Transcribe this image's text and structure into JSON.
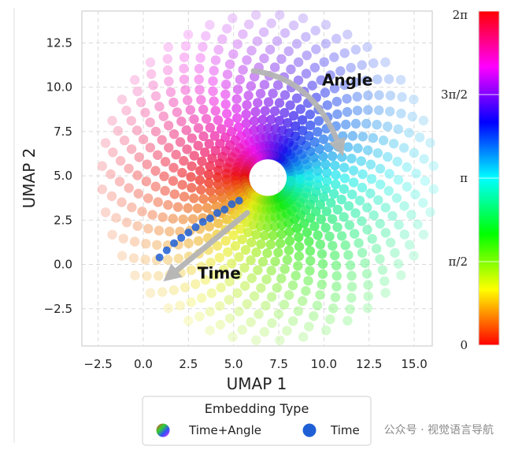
{
  "chart_data": {
    "type": "scatter",
    "xlabel": "UMAP 1",
    "ylabel": "UMAP 2",
    "xlim": [
      -3.4,
      16.0
    ],
    "ylim": [
      -4.6,
      14.3
    ],
    "xticks": [
      "−2.5",
      "0.0",
      "2.5",
      "5.0",
      "7.5",
      "10.0",
      "12.5",
      "15.0"
    ],
    "xtick_values": [
      -2.5,
      0,
      2.5,
      5,
      7.5,
      10,
      12.5,
      15
    ],
    "yticks": [
      "−2.5",
      "0.0",
      "2.5",
      "5.0",
      "7.5",
      "10.0",
      "12.5"
    ],
    "ytick_values": [
      -2.5,
      0,
      2.5,
      5,
      7.5,
      10,
      12.5
    ],
    "grid": true,
    "center": [
      6.9,
      4.9
    ],
    "inner_radius": 1.3,
    "outer_radius": 9.2,
    "spiral_arms": 44,
    "series": [
      {
        "name": "Time+Angle",
        "marker": "gradient-circle"
      },
      {
        "name": "Time",
        "color": "#1f5fd6",
        "points": [
          [
            0.9,
            0.4
          ],
          [
            1.3,
            0.8
          ],
          [
            1.7,
            1.2
          ],
          [
            2.1,
            1.5
          ],
          [
            2.5,
            1.8
          ],
          [
            2.9,
            2.1
          ],
          [
            3.3,
            2.4
          ],
          [
            3.7,
            2.6
          ],
          [
            4.1,
            2.9
          ],
          [
            4.5,
            3.1
          ],
          [
            4.9,
            3.4
          ],
          [
            5.3,
            3.6
          ]
        ]
      }
    ],
    "annotations": [
      {
        "text": "Angle",
        "x": 11.3,
        "y": 10.1
      },
      {
        "text": "Time",
        "x": 4.2,
        "y": -0.8
      }
    ],
    "colorbar": {
      "ticks": [
        "0",
        "π/2",
        "π",
        "3π/2",
        "2π"
      ],
      "tick_values": [
        0,
        1.5708,
        3.1416,
        4.7124,
        6.2832
      ],
      "range": [
        0,
        6.2832
      ],
      "colormap": "hsv"
    },
    "legend": {
      "title": "Embedding Type",
      "placement": "bottom-center",
      "entries": [
        "Time+Angle",
        "Time"
      ]
    }
  },
  "watermark": "公众号 · 视觉语言导航",
  "colors": {
    "grid": "#d9d9d9",
    "frame": "#cfcfcf",
    "arrow": "#b5b5b5",
    "time_series": "#1f5fd6"
  }
}
